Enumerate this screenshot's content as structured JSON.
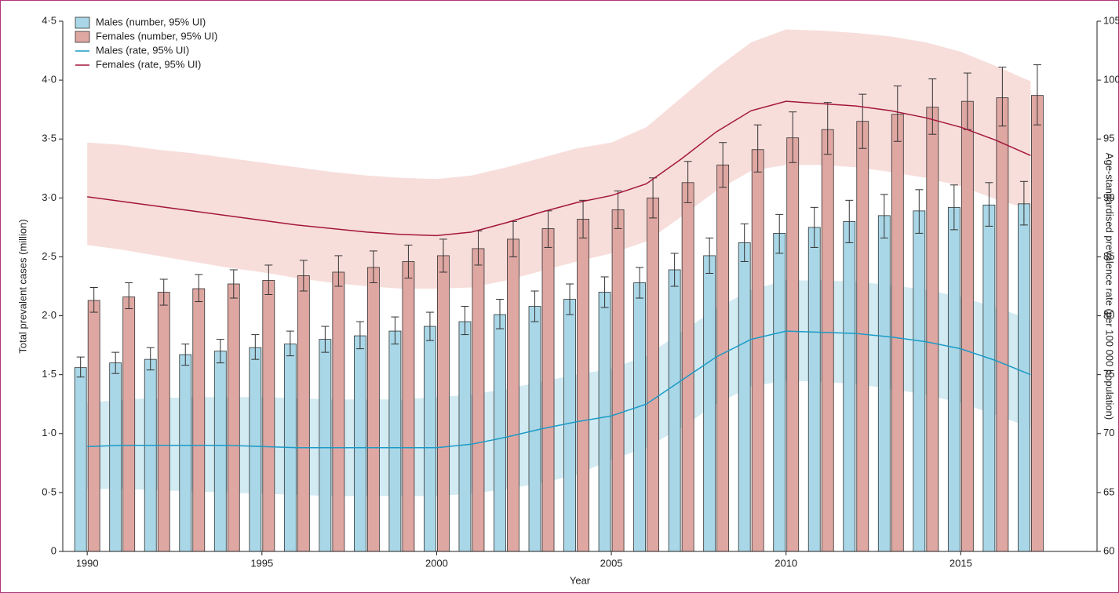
{
  "chart_data": {
    "type": "bar",
    "x": [
      1990,
      1991,
      1992,
      1993,
      1994,
      1995,
      1996,
      1997,
      1998,
      1999,
      2000,
      2001,
      2002,
      2003,
      2004,
      2005,
      2006,
      2007,
      2008,
      2009,
      2010,
      2011,
      2012,
      2013,
      2014,
      2015,
      2016,
      2017
    ],
    "xlim": [
      1989.3,
      2018.9
    ],
    "xticks": [
      1990,
      1995,
      2000,
      2005,
      2010,
      2015
    ],
    "x_label": "Year",
    "y_label": "Total prevalent cases (million)",
    "y2_label": "Age-standardised prevalence rate (per 100 000 population)",
    "ylim": [
      0,
      4.5
    ],
    "yticks": [
      0,
      {
        "value": 0.5,
        "label": "0·5"
      },
      {
        "value": 1,
        "label": "1·0"
      },
      {
        "value": 1.5,
        "label": "1·5"
      },
      {
        "value": 2,
        "label": "2·0"
      },
      {
        "value": 2.5,
        "label": "2·5"
      },
      {
        "value": 3,
        "label": "3·0"
      },
      {
        "value": 3.5,
        "label": "3·5"
      },
      {
        "value": 4,
        "label": "4·0"
      },
      {
        "value": 4.5,
        "label": "4·5"
      }
    ],
    "y2lim": [
      60,
      105
    ],
    "y2ticks": [
      60,
      65,
      70,
      75,
      80,
      85,
      90,
      95,
      100,
      105
    ],
    "legend": "upper left",
    "series": [
      {
        "name": "Males (number, 95% UI)",
        "type": "bar",
        "color": "#a9d7e7",
        "band_color": "#a9d7e7",
        "values": [
          1.56,
          1.6,
          1.63,
          1.67,
          1.7,
          1.73,
          1.76,
          1.8,
          1.83,
          1.87,
          1.91,
          1.95,
          2.01,
          2.08,
          2.14,
          2.2,
          2.28,
          2.39,
          2.51,
          2.62,
          2.7,
          2.75,
          2.8,
          2.85,
          2.89,
          2.92,
          2.94,
          2.95
        ],
        "lower": [
          1.48,
          1.51,
          1.54,
          1.58,
          1.6,
          1.63,
          1.66,
          1.69,
          1.72,
          1.76,
          1.79,
          1.84,
          1.89,
          1.95,
          2.01,
          2.07,
          2.15,
          2.25,
          2.36,
          2.46,
          2.53,
          2.58,
          2.62,
          2.66,
          2.7,
          2.73,
          2.76,
          2.77
        ],
        "upper": [
          1.65,
          1.69,
          1.73,
          1.76,
          1.8,
          1.84,
          1.87,
          1.91,
          1.95,
          1.99,
          2.03,
          2.08,
          2.14,
          2.21,
          2.27,
          2.33,
          2.41,
          2.53,
          2.66,
          2.78,
          2.86,
          2.92,
          2.98,
          3.03,
          3.07,
          3.11,
          3.13,
          3.14
        ]
      },
      {
        "name": "Females (number, 95% UI)",
        "type": "bar",
        "color": "#dfa7a2",
        "band_color": "#dfa7a2",
        "values": [
          2.13,
          2.16,
          2.2,
          2.23,
          2.27,
          2.3,
          2.34,
          2.37,
          2.41,
          2.46,
          2.51,
          2.57,
          2.65,
          2.74,
          2.82,
          2.9,
          3.0,
          3.13,
          3.28,
          3.41,
          3.51,
          3.58,
          3.65,
          3.71,
          3.77,
          3.82,
          3.85,
          3.87
        ],
        "lower": [
          2.03,
          2.06,
          2.09,
          2.12,
          2.15,
          2.18,
          2.21,
          2.25,
          2.28,
          2.32,
          2.37,
          2.43,
          2.5,
          2.58,
          2.66,
          2.74,
          2.83,
          2.96,
          3.09,
          3.22,
          3.3,
          3.37,
          3.42,
          3.48,
          3.54,
          3.58,
          3.61,
          3.62
        ],
        "upper": [
          2.24,
          2.28,
          2.31,
          2.35,
          2.39,
          2.43,
          2.47,
          2.51,
          2.55,
          2.6,
          2.65,
          2.72,
          2.8,
          2.89,
          2.98,
          3.06,
          3.17,
          3.31,
          3.47,
          3.62,
          3.73,
          3.81,
          3.88,
          3.95,
          4.01,
          4.06,
          4.11,
          4.13
        ]
      },
      {
        "name": "Males (rate, 95% UI)",
        "type": "line",
        "axis": "y2",
        "color": "#1b9ac6",
        "band_color": "#d2eaf2",
        "values": [
          68.9,
          69.0,
          69.0,
          69.0,
          69.0,
          68.9,
          68.8,
          68.8,
          68.8,
          68.8,
          68.8,
          69.1,
          69.7,
          70.4,
          71.0,
          71.5,
          72.5,
          74.5,
          76.5,
          78.0,
          78.7,
          78.6,
          78.5,
          78.2,
          77.8,
          77.2,
          76.2,
          75.0
        ],
        "lower": [
          65.3,
          65.3,
          65.2,
          65.1,
          65.0,
          64.9,
          64.8,
          64.7,
          64.7,
          64.7,
          64.7,
          64.9,
          65.3,
          65.8,
          66.5,
          67.8,
          68.8,
          70.5,
          72.5,
          74.0,
          74.5,
          74.4,
          74.2,
          73.8,
          73.3,
          72.6,
          71.6,
          70.5
        ],
        "upper": [
          72.6,
          72.9,
          73.0,
          73.1,
          73.1,
          73.1,
          73.0,
          72.9,
          72.9,
          72.9,
          73.1,
          73.3,
          73.8,
          74.4,
          75.0,
          75.5,
          76.6,
          78.6,
          80.6,
          82.2,
          83.0,
          83.0,
          82.9,
          82.6,
          82.2,
          81.6,
          80.7,
          79.7
        ]
      },
      {
        "name": "Females (rate, 95% UI)",
        "type": "line",
        "axis": "y2",
        "color": "#a3163c",
        "band_color": "#f7dedb",
        "values": [
          90.1,
          89.7,
          89.3,
          88.9,
          88.5,
          88.1,
          87.7,
          87.4,
          87.1,
          86.9,
          86.8,
          87.1,
          87.9,
          88.8,
          89.6,
          90.2,
          91.2,
          93.3,
          95.6,
          97.4,
          98.2,
          98.0,
          97.8,
          97.4,
          96.8,
          96.0,
          94.9,
          93.6
        ],
        "lower": [
          86.0,
          85.6,
          85.1,
          84.6,
          84.1,
          83.7,
          83.2,
          82.8,
          82.5,
          82.3,
          82.3,
          82.4,
          83.0,
          83.8,
          84.6,
          85.3,
          86.3,
          88.4,
          90.6,
          92.3,
          92.8,
          92.8,
          92.6,
          92.2,
          91.7,
          91.0,
          89.9,
          89.0
        ],
        "upper": [
          94.7,
          94.5,
          94.1,
          93.8,
          93.4,
          93.0,
          92.6,
          92.2,
          91.9,
          91.7,
          91.6,
          91.9,
          92.6,
          93.4,
          94.2,
          94.7,
          96.0,
          98.5,
          101.0,
          103.2,
          104.3,
          104.2,
          104.0,
          103.7,
          103.2,
          102.4,
          101.2,
          99.9
        ]
      }
    ]
  }
}
